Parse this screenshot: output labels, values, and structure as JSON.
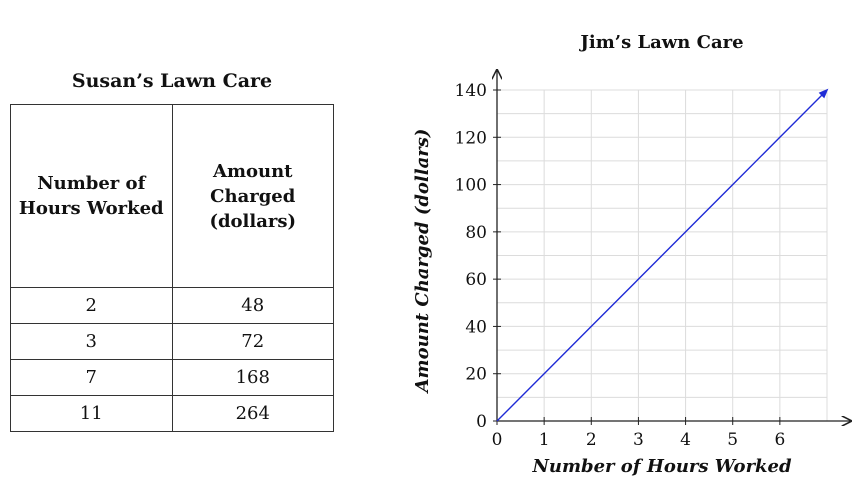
{
  "table": {
    "title": "Susan’s Lawn Care",
    "headers": [
      "Number of Hours Worked",
      "Amount Charged (dollars)"
    ],
    "rows": [
      [
        "2",
        "48"
      ],
      [
        "3",
        "72"
      ],
      [
        "7",
        "168"
      ],
      [
        "11",
        "264"
      ]
    ]
  },
  "chart_data": {
    "type": "line",
    "title": "Jim’s Lawn Care",
    "xlabel": "Number of Hours Worked",
    "ylabel": "Amount Charged (dollars)",
    "xlim": [
      0,
      7
    ],
    "ylim": [
      0,
      140
    ],
    "xticks": [
      0,
      1,
      2,
      3,
      4,
      5,
      6
    ],
    "yticks": [
      0,
      20,
      40,
      60,
      80,
      100,
      120,
      140
    ],
    "grid": true,
    "series": [
      {
        "x": [
          0,
          1,
          2,
          3,
          4,
          5,
          6,
          7
        ],
        "y": [
          0,
          20,
          40,
          60,
          80,
          100,
          120,
          140
        ],
        "color": "#1f2bd6",
        "arrow_end": true
      }
    ]
  }
}
